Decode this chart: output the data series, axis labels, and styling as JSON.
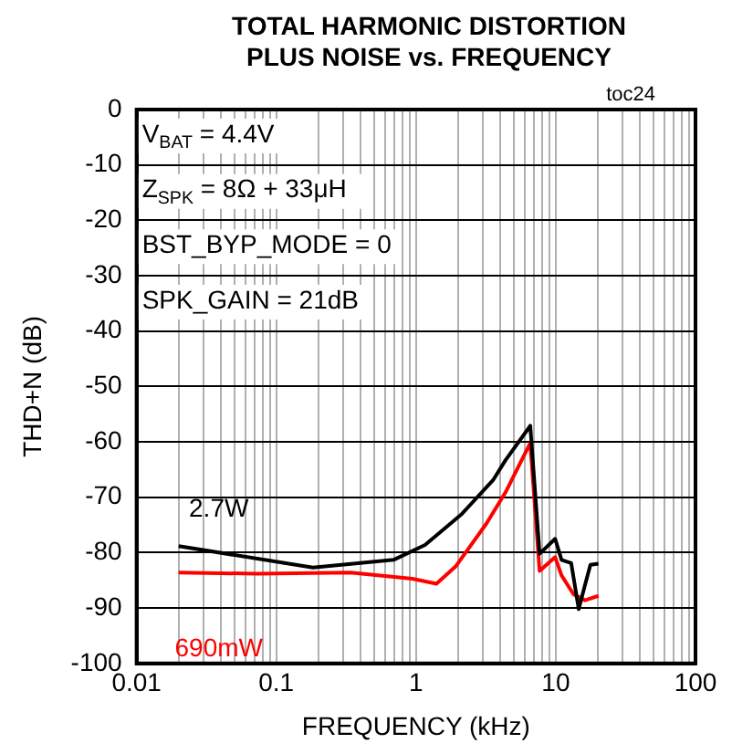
{
  "chart_data": {
    "type": "line",
    "title": "TOTAL HARMONIC DISTORTION\nPLUS NOISE vs. FREQUENCY",
    "xlabel": "FREQUENCY (kHz)",
    "ylabel": "THD+N (dB)",
    "log": "x",
    "xlim": [
      0.01,
      100
    ],
    "xticks": [
      0.01,
      0.1,
      1,
      10,
      100
    ],
    "ylim": [
      -100,
      0
    ],
    "yticks": [
      0,
      -10,
      -20,
      -30,
      -40,
      -50,
      -60,
      -70,
      -80,
      -90,
      -100
    ],
    "grid": true,
    "legend": false,
    "marker": "none",
    "line_style": "solid",
    "series": [
      {
        "name": "2.7W",
        "color": "#000000",
        "x": [
          0.02,
          0.183,
          0.69,
          1.16,
          2.13,
          3.56,
          4.37,
          6.57,
          7.66,
          9.9,
          11,
          12.9,
          14.6,
          16.2,
          17.7,
          20.2
        ],
        "values": [
          -78.8,
          -82.7,
          -81.3,
          -78.6,
          -73,
          -66.9,
          -63.3,
          -57.1,
          -80.2,
          -77.5,
          -81.3,
          -81.9,
          -90.2,
          -85.8,
          -82.2,
          -82
        ]
      },
      {
        "name": "690mW",
        "color": "#ff0000",
        "x": [
          0.02,
          0.073,
          0.34,
          0.94,
          1.4,
          1.92,
          3.2,
          4.37,
          6.57,
          7.66,
          9.9,
          11,
          13.4,
          16.2,
          20.2
        ],
        "values": [
          -83.6,
          -83.8,
          -83.6,
          -84.7,
          -85.6,
          -82.5,
          -74.7,
          -69.1,
          -60.2,
          -83.3,
          -80.8,
          -84.1,
          -87.5,
          -88.6,
          -87.8
        ]
      }
    ],
    "annotations": [
      "V$_{BAT}$ = 4.4V",
      "Z$_{SPK}$ = 8Ω + 33μH",
      "BST_BYP_MODE = 0",
      "SPK_GAIN = 21dB",
      "toc24"
    ]
  }
}
